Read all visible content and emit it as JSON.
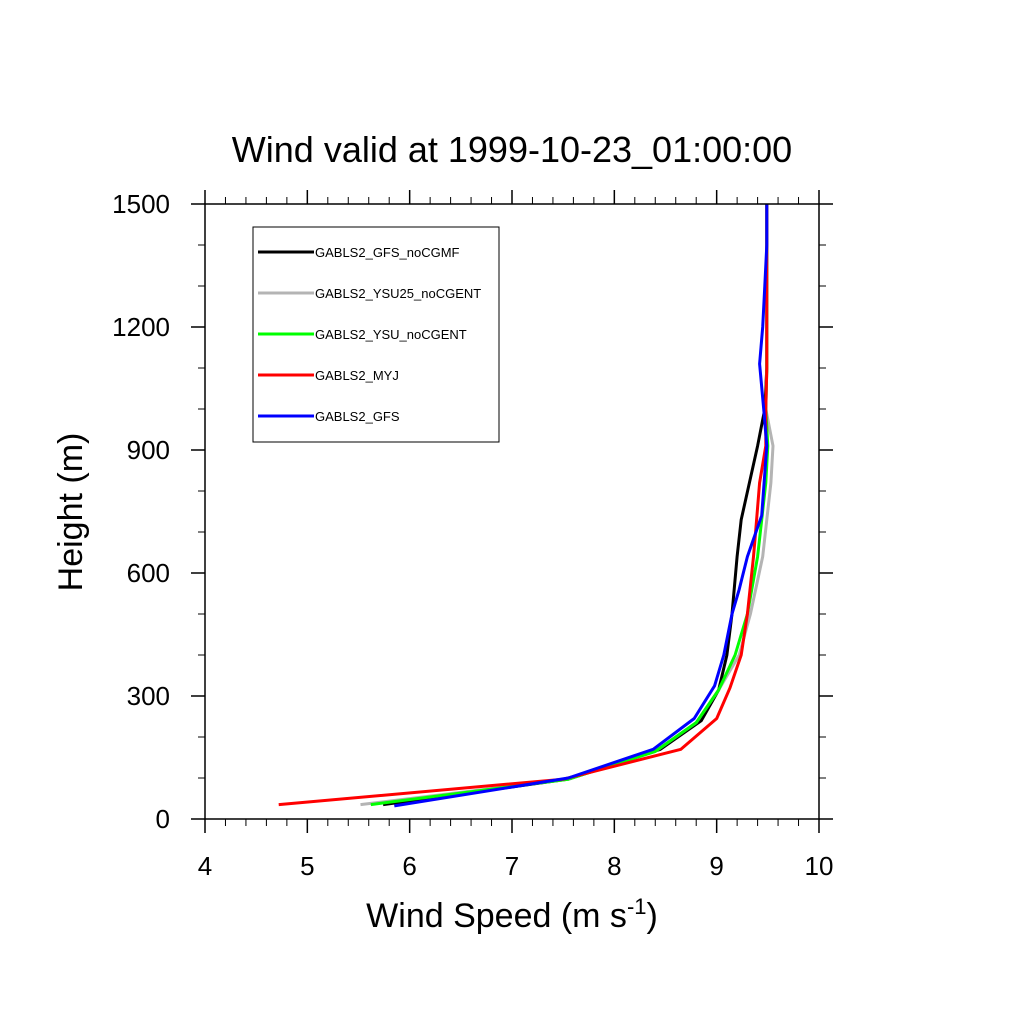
{
  "chart_data": {
    "type": "line",
    "title": "Wind valid at 1999-10-23_01:00:00",
    "xlabel": "Wind Speed (m s",
    "xlabel_sup": "-1",
    "xlabel_end": ")",
    "ylabel": "Height (m)",
    "xlim": [
      4,
      10
    ],
    "ylim": [
      0,
      1500
    ],
    "xticks": [
      4,
      5,
      6,
      7,
      8,
      9,
      10
    ],
    "yticks": [
      0,
      300,
      600,
      900,
      1200,
      1500
    ],
    "xtick_labels": [
      "4",
      "5",
      "6",
      "7",
      "8",
      "9",
      "10"
    ],
    "ytick_labels": [
      "0",
      "300",
      "600",
      "900",
      "1200",
      "1500"
    ],
    "legend_position": "top-left",
    "grid": false,
    "series": [
      {
        "name": "GABLS2_GFS_noCGMF",
        "color": "#000000",
        "points": [
          [
            5.74,
            35
          ],
          [
            7.55,
            97
          ],
          [
            8.45,
            170
          ],
          [
            8.85,
            240
          ],
          [
            9.02,
            315
          ],
          [
            9.1,
            400
          ],
          [
            9.15,
            500
          ],
          [
            9.2,
            640
          ],
          [
            9.24,
            730
          ],
          [
            9.4,
            910
          ],
          [
            9.47,
            1000
          ],
          [
            9.49,
            1100
          ],
          [
            9.49,
            1200
          ],
          [
            9.49,
            1300
          ],
          [
            9.49,
            1400
          ],
          [
            9.49,
            1500
          ]
        ]
      },
      {
        "name": "GABLS2_YSU25_noCGENT",
        "color": "#b4b4b4",
        "points": [
          [
            5.52,
            35
          ],
          [
            7.55,
            97
          ],
          [
            8.4,
            165
          ],
          [
            8.8,
            235
          ],
          [
            9.02,
            315
          ],
          [
            9.22,
            400
          ],
          [
            9.33,
            500
          ],
          [
            9.45,
            640
          ],
          [
            9.53,
            820
          ],
          [
            9.55,
            910
          ],
          [
            9.48,
            1000
          ],
          [
            9.49,
            1100
          ],
          [
            9.49,
            1200
          ],
          [
            9.49,
            1300
          ],
          [
            9.49,
            1400
          ],
          [
            9.49,
            1500
          ]
        ]
      },
      {
        "name": "GABLS2_YSU_noCGENT",
        "color": "#00ff00",
        "points": [
          [
            5.62,
            35
          ],
          [
            7.55,
            97
          ],
          [
            8.4,
            165
          ],
          [
            8.8,
            235
          ],
          [
            9.02,
            315
          ],
          [
            9.18,
            400
          ],
          [
            9.3,
            500
          ],
          [
            9.4,
            640
          ],
          [
            9.48,
            820
          ],
          [
            9.5,
            910
          ],
          [
            9.48,
            1000
          ],
          [
            9.49,
            1100
          ],
          [
            9.49,
            1200
          ],
          [
            9.49,
            1300
          ],
          [
            9.49,
            1400
          ],
          [
            9.49,
            1500
          ]
        ]
      },
      {
        "name": "GABLS2_MYJ",
        "color": "#ff0000",
        "points": [
          [
            4.72,
            35
          ],
          [
            7.5,
            97
          ],
          [
            8.65,
            170
          ],
          [
            9.0,
            245
          ],
          [
            9.13,
            320
          ],
          [
            9.24,
            400
          ],
          [
            9.3,
            500
          ],
          [
            9.36,
            640
          ],
          [
            9.38,
            700
          ],
          [
            9.42,
            820
          ],
          [
            9.48,
            910
          ],
          [
            9.48,
            1000
          ],
          [
            9.49,
            1100
          ],
          [
            9.49,
            1200
          ],
          [
            9.49,
            1300
          ],
          [
            9.49,
            1400
          ],
          [
            9.49,
            1500
          ]
        ]
      },
      {
        "name": "GABLS2_GFS",
        "color": "#0000ff",
        "points": [
          [
            5.85,
            32
          ],
          [
            7.55,
            100
          ],
          [
            8.38,
            170
          ],
          [
            8.78,
            245
          ],
          [
            8.98,
            325
          ],
          [
            9.07,
            400
          ],
          [
            9.15,
            500
          ],
          [
            9.22,
            560
          ],
          [
            9.3,
            640
          ],
          [
            9.44,
            740
          ],
          [
            9.49,
            910
          ],
          [
            9.46,
            1000
          ],
          [
            9.42,
            1110
          ],
          [
            9.45,
            1200
          ],
          [
            9.47,
            1300
          ],
          [
            9.49,
            1400
          ],
          [
            9.49,
            1500
          ]
        ]
      }
    ]
  }
}
